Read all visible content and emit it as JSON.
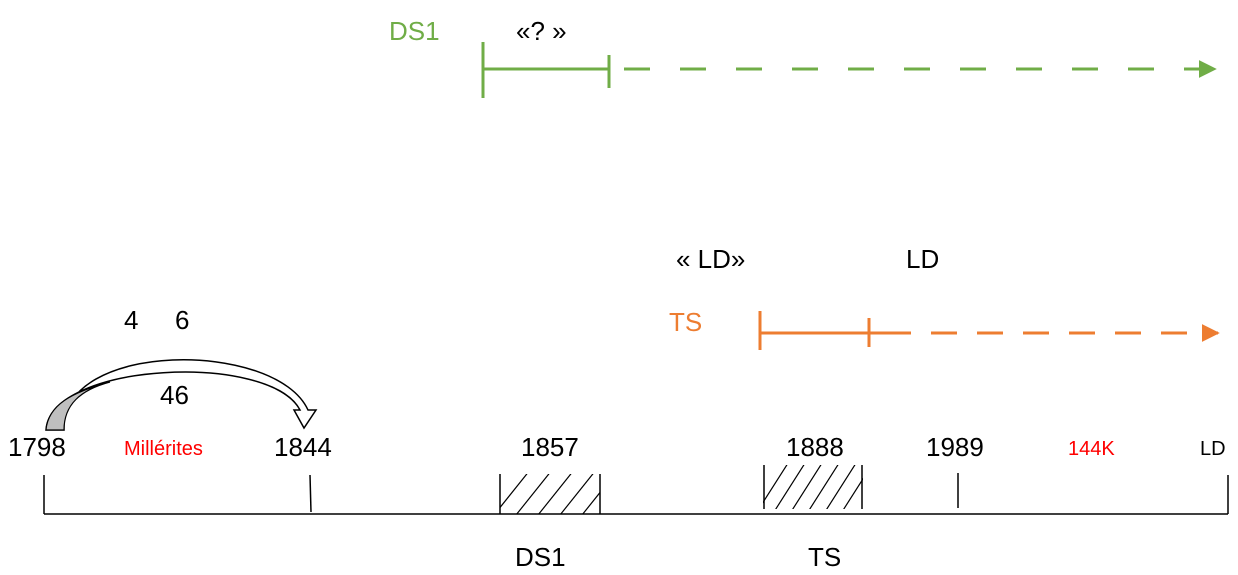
{
  "green_track": {
    "label": "DS1",
    "note": "«? »",
    "color": "#70ad47"
  },
  "orange_track": {
    "label": "TS",
    "note_left": "« LD»",
    "note_right": "LD",
    "color": "#ed7d31"
  },
  "arc": {
    "digit_a": "4",
    "digit_b": "6",
    "sum": "46"
  },
  "timeline": {
    "years": {
      "y1798": "1798",
      "y1844": "1844",
      "y1857": "1857",
      "y1888": "1888",
      "y1989": "1989",
      "ld": "LD"
    },
    "period_labels": {
      "millerites": "Millérites",
      "k144": "144K"
    },
    "below_labels": {
      "ds1": "DS1",
      "ts": "TS"
    },
    "accent_color": "#ff0000"
  }
}
